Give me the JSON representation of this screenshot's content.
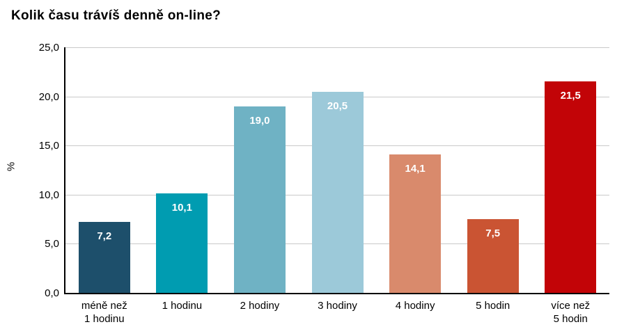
{
  "title": "Kolik času trávíš denně on-line?",
  "chart_data": {
    "type": "bar",
    "title": "Kolik času trávíš denně on-line?",
    "categories": [
      "méně než\n1 hodinu",
      "1 hodinu",
      "2 hodiny",
      "3 hodiny",
      "4 hodiny",
      "5 hodin",
      "více než\n5 hodin"
    ],
    "values": [
      7.2,
      10.1,
      19.0,
      20.5,
      14.1,
      7.5,
      21.5
    ],
    "value_labels": [
      "7,2",
      "10,1",
      "19,0",
      "20,5",
      "14,1",
      "7,5",
      "21,5"
    ],
    "bar_colors": [
      "#1d4f6b",
      "#009cb1",
      "#6fb2c4",
      "#9cc9d9",
      "#d98a6c",
      "#ca5433",
      "#c20407"
    ],
    "xlabel": "",
    "ylabel": "%",
    "ylim": [
      0,
      25
    ],
    "ytick_step": 5,
    "ytick_labels": [
      "0,0",
      "5,0",
      "10,0",
      "15,0",
      "20,0",
      "25,0"
    ],
    "grid": true,
    "legend": false,
    "gridline_color": "#c9c9c9",
    "axis_color": "#000000",
    "value_label_color": "#ffffff",
    "background_color": "#ffffff"
  }
}
